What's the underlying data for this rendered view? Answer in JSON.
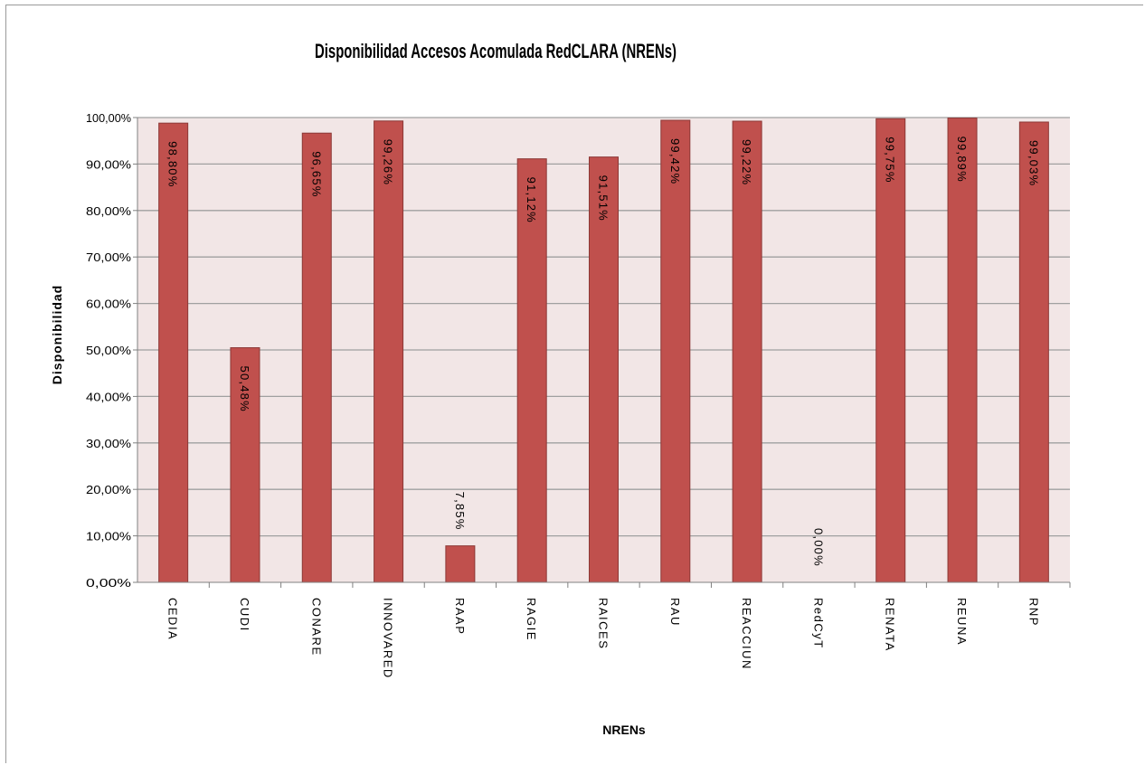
{
  "chart_data": {
    "type": "bar",
    "title": "Disponibilidad  Accesos Acomulada RedCLARA (NRENs)",
    "xlabel": "NRENs",
    "ylabel": "Disponibilidad",
    "categories": [
      "CEDIA",
      "CUDI",
      "CONARE",
      "INNOVARED",
      "RAAP",
      "RAGIE",
      "RAICES",
      "RAU",
      "REACCIUN",
      "RedCyT",
      "RENATA",
      "REUNA",
      "RNP"
    ],
    "values": [
      98.8,
      50.48,
      96.65,
      99.26,
      7.85,
      91.12,
      91.51,
      99.42,
      99.22,
      0.0,
      99.75,
      99.89,
      99.03
    ],
    "data_labels": [
      "98,80%",
      "50,48%",
      "96,65%",
      "99,26%",
      "7,85%",
      "91,12%",
      "91,51%",
      "99,42%",
      "99,22%",
      "0,00%",
      "99,75%",
      "99,89%",
      "99,03%"
    ],
    "y_ticks": [
      "0,00%",
      "10,00%",
      "20,00%",
      "30,00%",
      "40,00%",
      "50,00%",
      "60,00%",
      "70,00%",
      "80,00%",
      "90,00%",
      "100,00%"
    ],
    "ylim": [
      0,
      100
    ],
    "grid": true,
    "legend": "none",
    "colors": {
      "bar": "#c0504d",
      "bar_edge": "#8c3836",
      "plot_bg": "#f2e6e6",
      "grid": "#a0a0a0"
    }
  }
}
